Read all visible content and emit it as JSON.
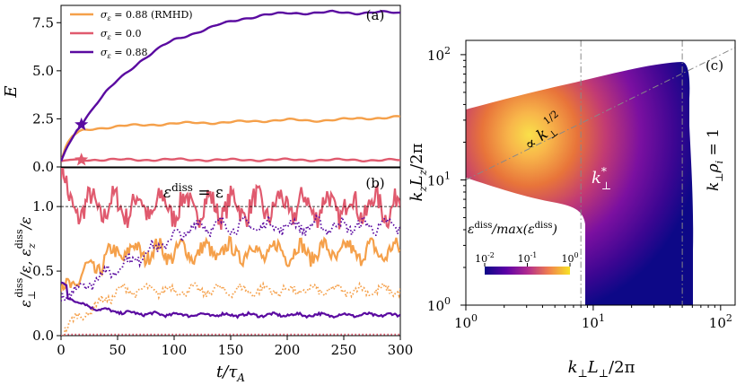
{
  "chart_data": [
    {
      "panel": "(a)",
      "type": "line",
      "ylabel": "E",
      "xlim": [
        0,
        300
      ],
      "ylim": [
        0,
        8.4
      ],
      "yticks": [
        "0.0",
        "2.5",
        "5.0",
        "7.5"
      ],
      "colors": {
        "rmhd": "#f5a04a",
        "s0": "#e05a6e",
        "s88": "#5a0aa0"
      },
      "series": [
        {
          "name": "σε = 0.88 (RMHD)",
          "label_main": "σ",
          "label_sub": "ε",
          "label_val": " = 0.88 (RMHD)",
          "color": "#f5a04a",
          "x": [
            0,
            5,
            10,
            15,
            20,
            30,
            40,
            50,
            60,
            80,
            100,
            120,
            140,
            160,
            180,
            200,
            220,
            240,
            260,
            280,
            300
          ],
          "y": [
            0.3,
            1.2,
            1.6,
            1.8,
            1.9,
            2.0,
            2.05,
            2.1,
            2.15,
            2.2,
            2.25,
            2.3,
            2.3,
            2.35,
            2.4,
            2.45,
            2.4,
            2.45,
            2.5,
            2.55,
            2.6
          ]
        },
        {
          "name": "σε = 0.0",
          "label_main": "σ",
          "label_sub": "ε",
          "label_val": " = 0.0",
          "color": "#e05a6e",
          "x": [
            0,
            5,
            10,
            15,
            20,
            50,
            100,
            150,
            200,
            250,
            300
          ],
          "y": [
            0.3,
            0.35,
            0.38,
            0.4,
            0.38,
            0.37,
            0.38,
            0.36,
            0.37,
            0.36,
            0.35
          ]
        },
        {
          "name": "σε = 0.88",
          "label_main": "σ",
          "label_sub": "ε",
          "label_val": " = 0.88",
          "color": "#5a0aa0",
          "x": [
            0,
            5,
            10,
            15,
            20,
            30,
            40,
            50,
            60,
            70,
            80,
            90,
            100,
            120,
            140,
            160,
            180,
            200,
            220,
            240,
            260,
            280,
            300
          ],
          "y": [
            0.3,
            1.0,
            1.5,
            2.0,
            2.4,
            3.2,
            3.9,
            4.5,
            5.0,
            5.5,
            5.9,
            6.3,
            6.6,
            7.0,
            7.4,
            7.7,
            7.9,
            8.0,
            8.0,
            8.05,
            8.0,
            8.05,
            8.0
          ]
        }
      ],
      "markers": [
        {
          "x": 18,
          "y": 2.2,
          "series": "σε = 0.88"
        },
        {
          "x": 18,
          "y": 0.37,
          "series": "σε = 0.0"
        }
      ]
    },
    {
      "panel": "(b)",
      "type": "line",
      "xlabel": "t/τA",
      "ylabel": "ε⊥diss/ε, εzdiss/ε",
      "xlim": [
        0,
        300
      ],
      "ylim": [
        0,
        1.3
      ],
      "xticks": [
        "0",
        "50",
        "100",
        "150",
        "200",
        "250",
        "300"
      ],
      "yticks": [
        "0.0",
        "0.5",
        "1.0"
      ],
      "annotation": "εdiss = ε",
      "reference_line": 1.0,
      "series": [
        {
          "name": "red ε⊥ (σε=0.0)",
          "color": "#e05a6e",
          "style": "solid",
          "mean": 1.0,
          "amp": 0.09
        },
        {
          "name": "orange ε⊥ (RMHD)",
          "color": "#f5a04a",
          "style": "solid",
          "mean": 0.65,
          "amp": 0.06
        },
        {
          "name": "purple ε⊥ (σε=0.88)",
          "color": "#5a0aa0",
          "style": "solid",
          "mean": 0.16,
          "amp": 0.01
        },
        {
          "name": "purple εz (σε=0.88)",
          "color": "#5a0aa0",
          "style": "dotted",
          "mean": 0.85,
          "amp": 0.04
        },
        {
          "name": "orange εz (RMHD)",
          "color": "#f5a04a",
          "style": "dotted",
          "mean": 0.35,
          "amp": 0.03
        },
        {
          "name": "red εz (σε=0.0)",
          "color": "#e05a6e",
          "style": "dotted",
          "mean": 0.01,
          "amp": 0.0
        }
      ]
    },
    {
      "panel": "(c)",
      "type": "heatmap",
      "xlabel": "k⊥L⊥/2π",
      "ylabel": "kzLz/2π",
      "xscale": "log",
      "yscale": "log",
      "xlim": [
        1,
        130
      ],
      "ylim": [
        1,
        130
      ],
      "xticks": [
        {
          "base": "10",
          "exp": "0",
          "value": 1
        },
        {
          "base": "10",
          "exp": "1",
          "value": 10
        },
        {
          "base": "10",
          "exp": "2",
          "value": 100
        }
      ],
      "yticks": [
        {
          "base": "10",
          "exp": "0",
          "value": 1
        },
        {
          "base": "10",
          "exp": "1",
          "value": 10
        },
        {
          "base": "10",
          "exp": "2",
          "value": 100
        }
      ],
      "colorbar": {
        "label": "εdiss/max(εdiss)",
        "ticks": [
          {
            "base": "10",
            "exp": "-2"
          },
          {
            "base": "10",
            "exp": "-1"
          },
          {
            "base": "10",
            "exp": "0"
          }
        ]
      },
      "vlines": [
        8,
        50
      ],
      "power_law_exponent": 0.5,
      "annotations": {
        "scaling": "∝ k⊥1/2",
        "k_star": "k*⊥",
        "kperp_rho": "k⊥ρi = 1"
      }
    }
  ],
  "labels": {
    "panel_a": "(a)",
    "panel_b": "(b)",
    "panel_c": "(c)",
    "a_ylabel": "E",
    "b_annot_main": "ε",
    "b_annot_sup": "diss",
    "b_annot_rest": " = ε",
    "xlabel_main": "t/τ",
    "xlabel_sub": "A",
    "c_scaling_main": "∝ k",
    "c_scaling_sub": "⊥",
    "c_scaling_sup": "1/2",
    "c_kstar_main": "k",
    "c_kstar_sup": "*",
    "c_kstar_sub": "⊥",
    "c_rho_main": "k",
    "c_rho_sub": "⊥",
    "c_rho_mid": "ρ",
    "c_rho_sub2": "i",
    "c_rho_rest": " = 1",
    "c_cb_label": "ε",
    "c_cb_sup": "diss",
    "c_cb_rest": "/max(ε",
    "c_cb_sup2": "diss",
    "c_cb_end": ")",
    "c_xlabel_main": "k",
    "c_xlabel_sub": "⊥",
    "c_xlabel_mid": "L",
    "c_xlabel_sub2": "⊥",
    "c_xlabel_rest": "/2π",
    "c_ylabel_main": "k",
    "c_ylabel_sub": "z",
    "c_ylabel_mid": "L",
    "c_ylabel_sub2": "z",
    "c_ylabel_rest": "/2π",
    "b_ylabel_p1": "ε",
    "b_ylabel_s1": "⊥",
    "b_ylabel_sup1": "diss",
    "b_ylabel_p2": "/ε, ε",
    "b_ylabel_s2": "z",
    "b_ylabel_sup2": "diss",
    "b_ylabel_p3": "/ε"
  }
}
